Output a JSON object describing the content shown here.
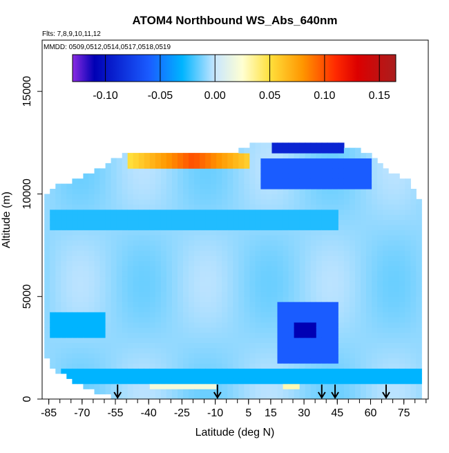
{
  "chart_data": {
    "type": "heatmap",
    "title": "ATOM4 Northbound WS_Abs_640nm",
    "flights_note": "Flts: 7,8,9,10,11,12",
    "dates_note": "MMDD: 0509,0512,0514,0517,0518,0519",
    "xlabel": "Latitude (deg N)",
    "ylabel": "Altitude (m)",
    "xlim": [
      -88,
      86
    ],
    "ylim": [
      0,
      17500
    ],
    "x_ticks": [
      -85,
      -70,
      -55,
      -40,
      -25,
      -10,
      5,
      15,
      30,
      45,
      60,
      75
    ],
    "x_tick_labels": [
      "-85",
      "-70",
      "-55",
      "-40",
      "-25",
      "-10",
      "5",
      "15",
      "30",
      "45",
      "60",
      "75"
    ],
    "x_minor_step": 5,
    "y_ticks": [
      0,
      5000,
      10000,
      15000
    ],
    "y_tick_labels": [
      "0",
      "5000",
      "10000",
      "15000"
    ],
    "colorbar": {
      "min": -0.13,
      "max": 0.165,
      "ticks": [
        -0.1,
        -0.05,
        0.0,
        0.05,
        0.1,
        0.15
      ],
      "tick_labels": [
        "-0.10",
        "-0.05",
        "0.00",
        "0.05",
        "0.10",
        "0.15"
      ],
      "stops": [
        {
          "v": -0.13,
          "c": "#8a2be2"
        },
        {
          "v": -0.11,
          "c": "#0000b4"
        },
        {
          "v": -0.06,
          "c": "#1a5cff"
        },
        {
          "v": -0.03,
          "c": "#00b4ff"
        },
        {
          "v": 0.0,
          "c": "#c8e6ff"
        },
        {
          "v": 0.025,
          "c": "#ffffd2"
        },
        {
          "v": 0.05,
          "c": "#ffe03c"
        },
        {
          "v": 0.08,
          "c": "#ff9600"
        },
        {
          "v": 0.11,
          "c": "#ff2a00"
        },
        {
          "v": 0.13,
          "c": "#dc0000"
        },
        {
          "v": 0.165,
          "c": "#aa1e1e"
        }
      ]
    },
    "profile_arrows_lat": [
      -54,
      -9,
      38,
      44,
      67
    ],
    "background_value": -0.008,
    "profile_latitudes": [
      {
        "lat": -87,
        "min_alt": 2000,
        "max_alt": 9800
      },
      {
        "lat": -83,
        "min_alt": 1500,
        "max_alt": 10500
      },
      {
        "lat": -75,
        "min_alt": 1000,
        "max_alt": 10500
      },
      {
        "lat": -65,
        "min_alt": 500,
        "max_alt": 11000
      },
      {
        "lat": -50,
        "min_alt": 0,
        "max_alt": 12000
      },
      {
        "lat": -35,
        "min_alt": 0,
        "max_alt": 12000
      },
      {
        "lat": -15,
        "min_alt": 0,
        "max_alt": 12000
      },
      {
        "lat": 0,
        "min_alt": 0,
        "max_alt": 12000
      },
      {
        "lat": 10,
        "min_alt": 0,
        "max_alt": 12500
      },
      {
        "lat": 25,
        "min_alt": 0,
        "max_alt": 12500
      },
      {
        "lat": 40,
        "min_alt": 0,
        "max_alt": 12500
      },
      {
        "lat": 55,
        "min_alt": 0,
        "max_alt": 12000
      },
      {
        "lat": 68,
        "min_alt": 0,
        "max_alt": 11000
      },
      {
        "lat": 76,
        "min_alt": 0,
        "max_alt": 10500
      },
      {
        "lat": 82,
        "min_alt": 0,
        "max_alt": 9500
      }
    ],
    "features": [
      {
        "lat0": -50,
        "lat1": 5,
        "alt0": 11200,
        "alt1": 12000,
        "value": 0.1,
        "peak_lat": -20
      },
      {
        "lat0": 15,
        "lat1": 48,
        "alt0": 12000,
        "alt1": 12500,
        "value": -0.09
      },
      {
        "lat0": 10,
        "lat1": 60,
        "alt0": 10300,
        "alt1": 11800,
        "value": -0.06
      },
      {
        "lat0": 17,
        "lat1": 45,
        "alt0": 1800,
        "alt1": 4800,
        "value": -0.06
      },
      {
        "lat0": 25,
        "lat1": 35,
        "alt0": 2900,
        "alt1": 3800,
        "value": -0.11
      },
      {
        "lat0": -85,
        "lat1": -60,
        "alt0": 3000,
        "alt1": 4200,
        "value": -0.03
      },
      {
        "lat0": -80,
        "lat1": 82,
        "alt0": 800,
        "alt1": 1400,
        "value": -0.03
      },
      {
        "lat0": -85,
        "lat1": 45,
        "alt0": 8200,
        "alt1": 9200,
        "value": -0.025
      },
      {
        "lat0": -40,
        "lat1": -10,
        "alt0": 400,
        "alt1": 800,
        "value": 0.02
      },
      {
        "lat0": 20,
        "lat1": 28,
        "alt0": 400,
        "alt1": 800,
        "value": 0.03
      }
    ]
  }
}
